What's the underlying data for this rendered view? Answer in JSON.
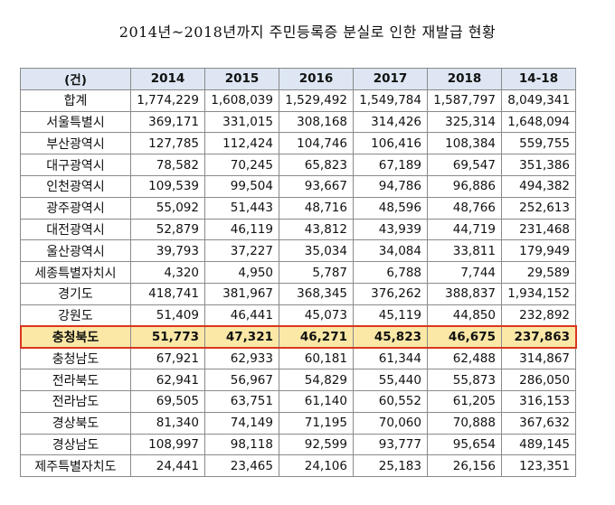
{
  "title": "2014년~2018년까지 주민등록증 분실로 인한 재발급 현황",
  "table": {
    "headers": [
      "(건)",
      "2014",
      "2015",
      "2016",
      "2017",
      "2018",
      "14-18"
    ],
    "rows": [
      {
        "region": "합계",
        "values": [
          "1,774,229",
          "1,608,039",
          "1,529,492",
          "1,549,784",
          "1,587,797",
          "8,049,341"
        ]
      },
      {
        "region": "서울특별시",
        "values": [
          "369,171",
          "331,015",
          "308,168",
          "314,426",
          "325,314",
          "1,648,094"
        ]
      },
      {
        "region": "부산광역시",
        "values": [
          "127,785",
          "112,424",
          "104,746",
          "106,416",
          "108,384",
          "559,755"
        ]
      },
      {
        "region": "대구광역시",
        "values": [
          "78,582",
          "70,245",
          "65,823",
          "67,189",
          "69,547",
          "351,386"
        ]
      },
      {
        "region": "인천광역시",
        "values": [
          "109,539",
          "99,504",
          "93,667",
          "94,786",
          "96,886",
          "494,382"
        ]
      },
      {
        "region": "광주광역시",
        "values": [
          "55,092",
          "51,443",
          "48,716",
          "48,596",
          "48,766",
          "252,613"
        ]
      },
      {
        "region": "대전광역시",
        "values": [
          "52,879",
          "46,119",
          "43,812",
          "43,939",
          "44,719",
          "231,468"
        ]
      },
      {
        "region": "울산광역시",
        "values": [
          "39,793",
          "37,227",
          "35,034",
          "34,084",
          "33,811",
          "179,949"
        ]
      },
      {
        "region": "세종특별자치시",
        "values": [
          "4,320",
          "4,950",
          "5,787",
          "6,788",
          "7,744",
          "29,589"
        ]
      },
      {
        "region": "경기도",
        "values": [
          "418,741",
          "381,967",
          "368,345",
          "376,262",
          "388,837",
          "1,934,152"
        ]
      },
      {
        "region": "강원도",
        "values": [
          "51,409",
          "46,441",
          "45,073",
          "45,119",
          "44,850",
          "232,892"
        ]
      },
      {
        "region": "충청북도",
        "values": [
          "51,773",
          "47,321",
          "46,271",
          "45,823",
          "46,675",
          "237,863"
        ],
        "highlight": true
      },
      {
        "region": "충청남도",
        "values": [
          "67,921",
          "62,933",
          "60,181",
          "61,344",
          "62,488",
          "314,867"
        ]
      },
      {
        "region": "전라북도",
        "values": [
          "62,941",
          "56,967",
          "54,829",
          "55,440",
          "55,873",
          "286,050"
        ]
      },
      {
        "region": "전라남도",
        "values": [
          "69,505",
          "63,751",
          "61,140",
          "60,552",
          "61,205",
          "316,153"
        ]
      },
      {
        "region": "경상북도",
        "values": [
          "81,340",
          "74,149",
          "71,195",
          "70,060",
          "70,888",
          "367,632"
        ]
      },
      {
        "region": "경상남도",
        "values": [
          "108,997",
          "98,118",
          "92,599",
          "93,777",
          "95,654",
          "489,145"
        ]
      },
      {
        "region": "제주특별자치도",
        "values": [
          "24,441",
          "23,465",
          "24,106",
          "25,183",
          "26,156",
          "123,351"
        ]
      }
    ]
  },
  "colors": {
    "header_bg": "#dde6f2",
    "highlight_bg": "#fbe8a6",
    "highlight_border": "#d9361f"
  }
}
